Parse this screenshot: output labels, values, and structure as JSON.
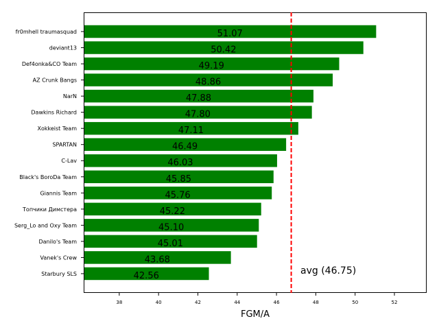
{
  "chart_data": {
    "type": "bar",
    "orientation": "horizontal",
    "categories": [
      "fr0mhell traumasquad",
      "deviant13",
      "Def4onka&CO Team",
      "AZ Crunk Bangs",
      "NarN",
      "Dawkins Richard",
      "Xokkeist Team",
      "SPARTAN",
      "C-Lav",
      "Black's BoroDa Team",
      "Giannis Team",
      "Топчики Димстера",
      "Serg_Lo and Oxy Team",
      "Danilo's Team",
      "Vanek's Crew",
      "Starbury SLS"
    ],
    "values": [
      51.07,
      50.42,
      49.19,
      48.86,
      47.88,
      47.8,
      47.11,
      46.49,
      46.03,
      45.85,
      45.76,
      45.22,
      45.1,
      45.01,
      43.68,
      42.56
    ],
    "value_labels": [
      "51.07",
      "50.42",
      "49.19",
      "48.86",
      "47.88",
      "47.80",
      "47.11",
      "46.49",
      "46.03",
      "45.85",
      "45.76",
      "45.22",
      "45.10",
      "45.01",
      "43.68",
      "42.56"
    ],
    "xlabel": "FGM/A",
    "ylabel": "",
    "title": "",
    "xlim": [
      36.19,
      53.64
    ],
    "xticks": [
      38,
      40,
      42,
      44,
      46,
      48,
      50,
      52
    ],
    "xtick_labels": [
      "38",
      "40",
      "42",
      "44",
      "46",
      "48",
      "50",
      "52"
    ],
    "reference_line": {
      "value": 46.75,
      "label": "avg (46.75)",
      "color": "#ff0000",
      "style": "dashed"
    },
    "bar_color": "#008000",
    "grid": false,
    "legend": "none"
  }
}
